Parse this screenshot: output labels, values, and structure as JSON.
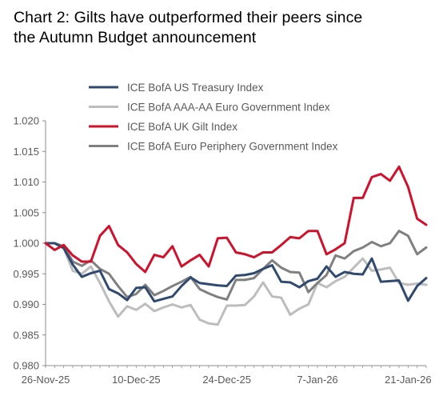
{
  "title_lines": [
    "Chart 2: Gilts have outperformed their peers since",
    "the Autumn Budget announcement"
  ],
  "chart_data": {
    "type": "line",
    "title": "Chart 2: Gilts have outperformed their peers since the Autumn Budget announcement",
    "xlabel": "",
    "ylabel": "",
    "ylim": [
      0.98,
      1.02
    ],
    "yticks": [
      "0.980",
      "0.985",
      "0.990",
      "0.995",
      "1.000",
      "1.005",
      "1.010",
      "1.015",
      "1.020"
    ],
    "xticks": [
      "26-Nov-25",
      "10-Dec-25",
      "24-Dec-25",
      "7-Jan-26",
      "21-Jan-26"
    ],
    "xtick_index": [
      0,
      10,
      20,
      30,
      40
    ],
    "grid": false,
    "legend_position": "top",
    "n_points": 43,
    "series": [
      {
        "name": "ICE BofA US Treasury Index",
        "color": "#2F4A6E",
        "values": [
          1.0,
          1.0,
          0.9992,
          0.9965,
          0.9945,
          0.9951,
          0.9955,
          0.9925,
          0.9918,
          0.9907,
          0.9927,
          0.9928,
          0.9905,
          0.9909,
          0.9913,
          0.993,
          0.9944,
          0.9935,
          0.9933,
          0.9931,
          0.993,
          0.9947,
          0.9948,
          0.9951,
          0.9958,
          0.9964,
          0.9937,
          0.9936,
          0.9928,
          0.9938,
          0.9942,
          0.9962,
          0.9945,
          0.9953,
          0.995,
          0.9949,
          0.9975,
          0.9937,
          0.9938,
          0.9939,
          0.9906,
          0.993,
          0.9943
        ]
      },
      {
        "name": "ICE BofA AAA-AA Euro Government Index",
        "color": "#BDBDBD",
        "values": [
          1.0,
          1.0,
          0.9992,
          0.9955,
          0.995,
          0.9962,
          0.9935,
          0.9905,
          0.988,
          0.9897,
          0.9891,
          0.9901,
          0.9889,
          0.9895,
          0.99,
          0.9895,
          0.9899,
          0.9875,
          0.9869,
          0.9867,
          0.9898,
          0.9898,
          0.9899,
          0.9913,
          0.9936,
          0.9913,
          0.9911,
          0.9883,
          0.9893,
          0.99,
          0.9935,
          0.9928,
          0.9938,
          0.9945,
          0.996,
          0.9975,
          0.9955,
          0.9957,
          0.996,
          0.9935,
          0.9932,
          0.9934,
          0.9932
        ]
      },
      {
        "name": "ICE BofA UK Gilt Index",
        "color": "#D0112B",
        "values": [
          1.0,
          0.9989,
          0.9997,
          0.998,
          0.997,
          0.997,
          1.0012,
          1.0028,
          0.9997,
          0.9985,
          0.9966,
          0.9953,
          0.9981,
          0.9977,
          0.9995,
          0.9962,
          0.9972,
          0.9981,
          0.9962,
          1.0008,
          1.0009,
          0.9985,
          0.9982,
          0.9977,
          0.9985,
          0.9985,
          0.9997,
          1.001,
          1.0008,
          1.002,
          1.002,
          0.9982,
          0.999,
          1.0,
          1.0074,
          1.0074,
          1.0108,
          1.0113,
          1.0102,
          1.0125,
          1.0092,
          1.004,
          1.003
        ]
      },
      {
        "name": "ICE BofA Euro Periphery Government Index",
        "color": "#808080",
        "values": [
          1.0,
          1.0,
          0.9995,
          0.997,
          0.9963,
          0.9972,
          0.9958,
          0.995,
          0.993,
          0.9912,
          0.9917,
          0.9932,
          0.9915,
          0.9922,
          0.993,
          0.9937,
          0.9945,
          0.9925,
          0.9918,
          0.9912,
          0.9908,
          0.994,
          0.994,
          0.9943,
          0.9958,
          0.9972,
          0.996,
          0.9953,
          0.9952,
          0.992,
          0.9935,
          0.9948,
          0.998,
          0.9975,
          0.9987,
          0.9993,
          1.0002,
          0.9995,
          1.0,
          1.002,
          1.0012,
          0.9982,
          0.9993
        ]
      }
    ]
  }
}
